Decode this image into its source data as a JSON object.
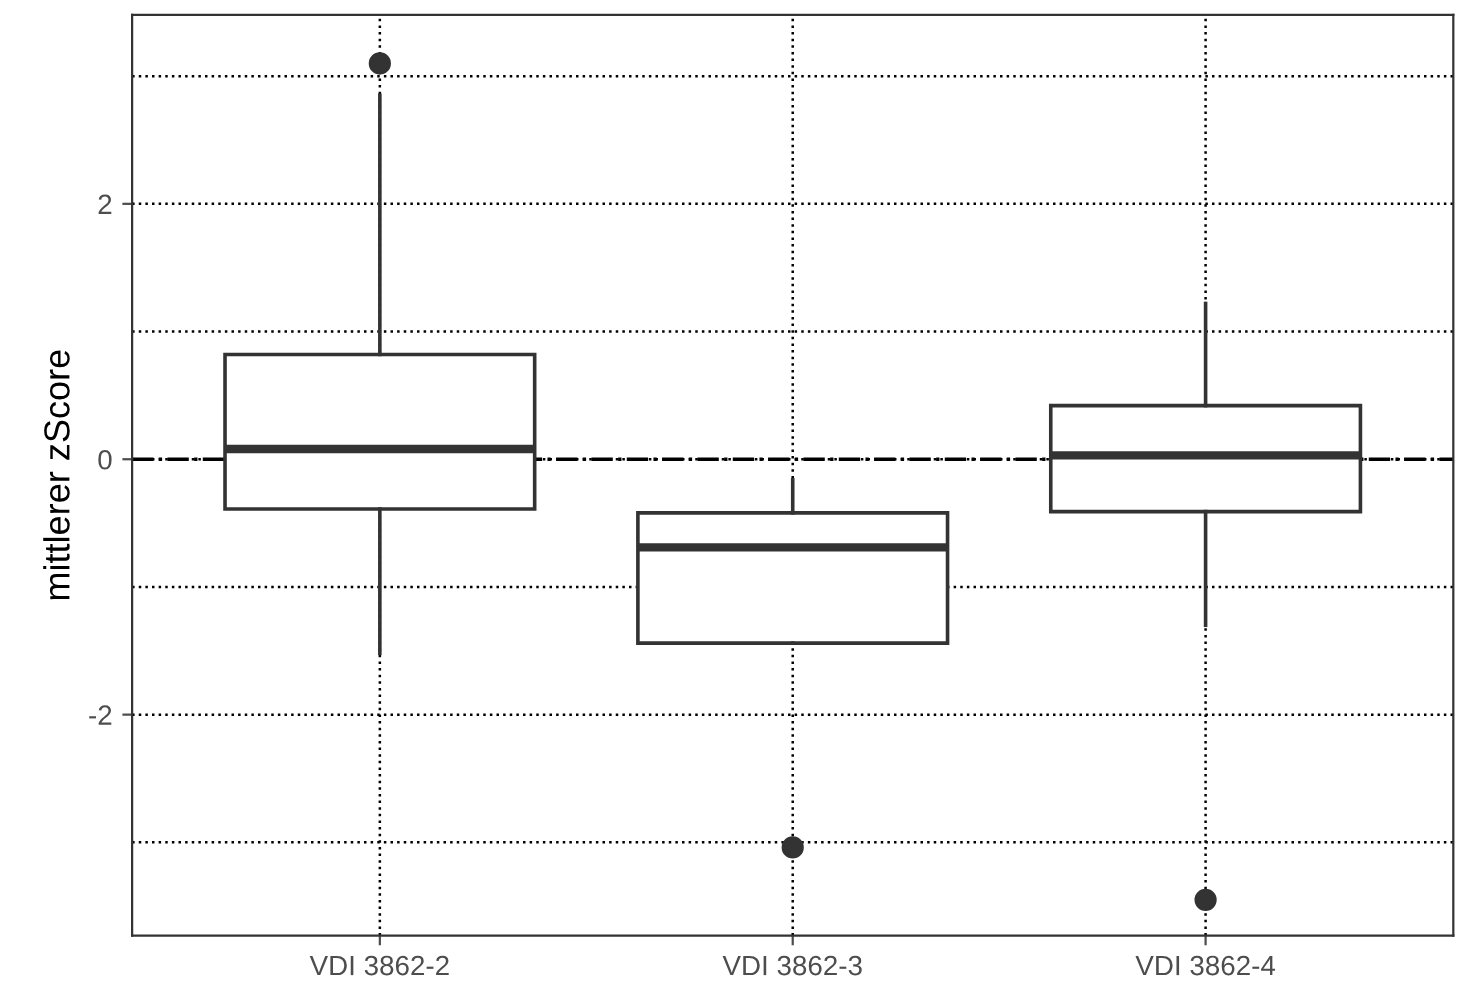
{
  "chart_data": {
    "type": "box",
    "ylabel": "mittlerer zScore",
    "categories": [
      "VDI 3862-2",
      "VDI 3862-3",
      "VDI 3862-4"
    ],
    "boxes": [
      {
        "low": -1.52,
        "q1": -0.39,
        "median": 0.08,
        "q3": 0.82,
        "high": 2.85,
        "outliers": [
          3.1
        ]
      },
      {
        "low": -1.44,
        "q1": -1.44,
        "median": -0.69,
        "q3": -0.42,
        "high": -0.16,
        "outliers": [
          -3.04
        ]
      },
      {
        "low": -1.3,
        "q1": -0.41,
        "median": 0.03,
        "q3": 0.42,
        "high": 1.22,
        "outliers": [
          -3.45
        ]
      }
    ],
    "color": "#333333",
    "ylim": [
      -3.73,
      3.48
    ],
    "yticks": [
      {
        "value": -3,
        "label": null
      },
      -2,
      {
        "value": -1,
        "label": null
      },
      0,
      {
        "value": 1,
        "label": null
      },
      2,
      {
        "value": 3,
        "label": null
      }
    ],
    "grid": true,
    "ref_lines": [
      {
        "axis": "y",
        "value": 0,
        "label": null,
        "color": "#000000",
        "line_style": "dashdot"
      }
    ]
  }
}
